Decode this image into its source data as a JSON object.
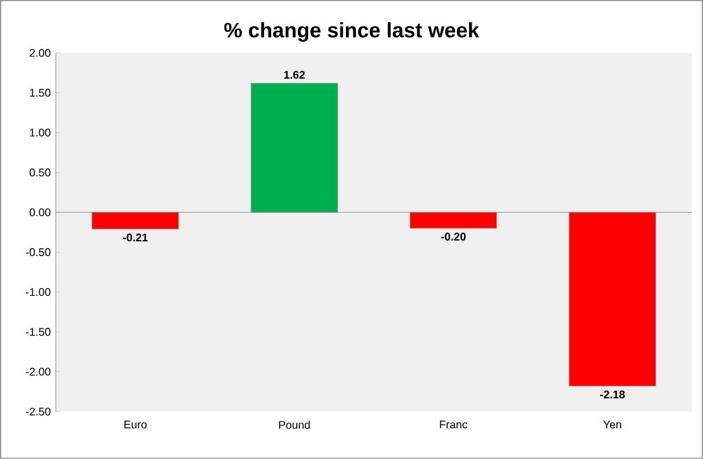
{
  "chart_data": {
    "type": "bar",
    "title": "% change since last week",
    "categories": [
      "Euro",
      "Pound",
      "Franc",
      "Yen"
    ],
    "values": [
      -0.21,
      1.62,
      -0.2,
      -2.18
    ],
    "colors": [
      "#ff0000",
      "#00b050",
      "#ff0000",
      "#ff0000"
    ],
    "ylim": [
      -2.5,
      2.0
    ],
    "yticks": [
      {
        "value": -2.5,
        "label": "-2.50"
      },
      {
        "value": -2.0,
        "label": "-2.00"
      },
      {
        "value": -1.5,
        "label": "-1.50"
      },
      {
        "value": -1.0,
        "label": "-1.00"
      },
      {
        "value": -0.5,
        "label": "-0.50"
      },
      {
        "value": 0,
        "label": "0.00"
      },
      {
        "value": 0.5,
        "label": "0.50"
      },
      {
        "value": 1.0,
        "label": "1.00"
      },
      {
        "value": 1.5,
        "label": "1.50"
      },
      {
        "value": 2.0,
        "label": "2.00"
      }
    ],
    "value_labels": [
      "-0.21",
      "1.62",
      "-0.20",
      "-2.18"
    ]
  }
}
